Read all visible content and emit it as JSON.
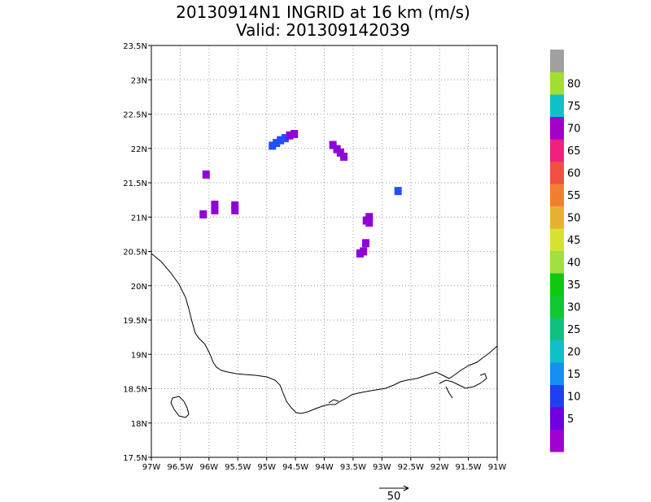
{
  "chart_data": {
    "type": "scatter",
    "title": "20130914N1 INGRID at 16 km (m/s)",
    "subtitle": "Valid: 201309142039",
    "xlim": [
      -97,
      -91
    ],
    "ylim": [
      17.5,
      23.5
    ],
    "grid": true,
    "x_ticks": [
      {
        "value": -97,
        "label": "97W"
      },
      {
        "value": -96.5,
        "label": "96.5W"
      },
      {
        "value": -96,
        "label": "96W"
      },
      {
        "value": -95.5,
        "label": "95.5W"
      },
      {
        "value": -95,
        "label": "95W"
      },
      {
        "value": -94.5,
        "label": "94.5W"
      },
      {
        "value": -94,
        "label": "94W"
      },
      {
        "value": -93.5,
        "label": "93.5W"
      },
      {
        "value": -93,
        "label": "93W"
      },
      {
        "value": -92.5,
        "label": "92.5W"
      },
      {
        "value": -92,
        "label": "92W"
      },
      {
        "value": -91.5,
        "label": "91.5W"
      },
      {
        "value": -91,
        "label": "91W"
      }
    ],
    "y_ticks": [
      {
        "value": 17.5,
        "label": "17.5N"
      },
      {
        "value": 18,
        "label": "18N"
      },
      {
        "value": 18.5,
        "label": "18.5N"
      },
      {
        "value": 19,
        "label": "19N"
      },
      {
        "value": 19.5,
        "label": "19.5N"
      },
      {
        "value": 20,
        "label": "20N"
      },
      {
        "value": 20.5,
        "label": "20.5N"
      },
      {
        "value": 21,
        "label": "21N"
      },
      {
        "value": 21.5,
        "label": "21.5N"
      },
      {
        "value": 22,
        "label": "22N"
      },
      {
        "value": 22.5,
        "label": "22.5N"
      },
      {
        "value": 23,
        "label": "23N"
      },
      {
        "value": 23.5,
        "label": "23.5N"
      }
    ],
    "colorbar": {
      "labels": [
        "5",
        "10",
        "15",
        "20",
        "25",
        "30",
        "35",
        "40",
        "45",
        "50",
        "55",
        "60",
        "65",
        "70",
        "75",
        "80"
      ],
      "colors": [
        "#a000d2",
        "#7000e0",
        "#2050ff",
        "#1490f0",
        "#10c0d0",
        "#10c8a0",
        "#10c860",
        "#10c810",
        "#a0e040",
        "#d8e040",
        "#e8c030",
        "#e8a030",
        "#f07028",
        "#f04040",
        "#f02080",
        "#9000c8",
        "#10c0c8",
        "#a0e030",
        "#a0a0a0"
      ]
    },
    "points": [
      {
        "lon": -96.05,
        "lat": 21.62,
        "speed": 5
      },
      {
        "lon": -96.1,
        "lat": 21.04,
        "speed": 5
      },
      {
        "lon": -95.9,
        "lat": 21.18,
        "speed": 5
      },
      {
        "lon": -95.9,
        "lat": 21.1,
        "speed": 5
      },
      {
        "lon": -95.55,
        "lat": 21.17,
        "speed": 5
      },
      {
        "lon": -95.55,
        "lat": 21.1,
        "speed": 5
      },
      {
        "lon": -94.9,
        "lat": 22.04,
        "speed": 10
      },
      {
        "lon": -94.83,
        "lat": 22.08,
        "speed": 10
      },
      {
        "lon": -94.76,
        "lat": 22.12,
        "speed": 12
      },
      {
        "lon": -94.68,
        "lat": 22.15,
        "speed": 12
      },
      {
        "lon": -94.6,
        "lat": 22.19,
        "speed": 5
      },
      {
        "lon": -94.52,
        "lat": 22.21,
        "speed": 5
      },
      {
        "lon": -93.85,
        "lat": 22.05,
        "speed": 5
      },
      {
        "lon": -93.78,
        "lat": 21.99,
        "speed": 5
      },
      {
        "lon": -93.72,
        "lat": 21.94,
        "speed": 5
      },
      {
        "lon": -93.66,
        "lat": 21.88,
        "speed": 5
      },
      {
        "lon": -92.72,
        "lat": 21.38,
        "speed": 10
      },
      {
        "lon": -93.22,
        "lat": 21.0,
        "speed": 5
      },
      {
        "lon": -93.27,
        "lat": 20.95,
        "speed": 5
      },
      {
        "lon": -93.22,
        "lat": 20.92,
        "speed": 5
      },
      {
        "lon": -93.28,
        "lat": 20.62,
        "speed": 5
      },
      {
        "lon": -93.32,
        "lat": 20.5,
        "speed": 5
      },
      {
        "lon": -93.38,
        "lat": 20.47,
        "speed": 5
      }
    ],
    "reference_vector": {
      "label": "50"
    }
  }
}
